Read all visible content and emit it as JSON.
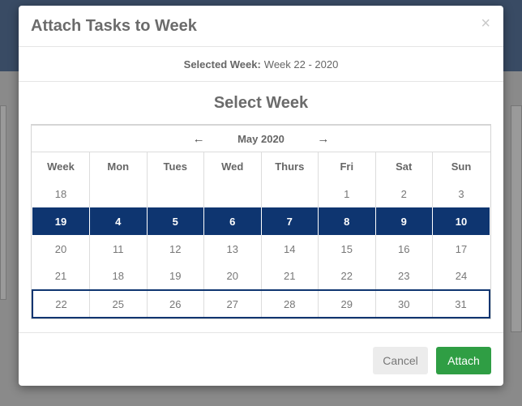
{
  "modal": {
    "title": "Attach Tasks to Week",
    "close_glyph": "×",
    "selected_week_label": "Selected Week:",
    "selected_week_value": "Week 22 - 2020",
    "section_title": "Select Week"
  },
  "calendar": {
    "month": "May 2020",
    "prev_glyph": "←",
    "next_glyph": "→",
    "headers": [
      "Week",
      "Mon",
      "Tues",
      "Wed",
      "Thurs",
      "Fri",
      "Sat",
      "Sun"
    ],
    "rows": [
      {
        "week": "18",
        "days": [
          "",
          "",
          "",
          "",
          "1",
          "2",
          "3"
        ],
        "state": "normal"
      },
      {
        "week": "19",
        "days": [
          "4",
          "5",
          "6",
          "7",
          "8",
          "9",
          "10"
        ],
        "state": "highlighted"
      },
      {
        "week": "20",
        "days": [
          "11",
          "12",
          "13",
          "14",
          "15",
          "16",
          "17"
        ],
        "state": "normal"
      },
      {
        "week": "21",
        "days": [
          "18",
          "19",
          "20",
          "21",
          "22",
          "23",
          "24"
        ],
        "state": "normal"
      },
      {
        "week": "22",
        "days": [
          "25",
          "26",
          "27",
          "28",
          "29",
          "30",
          "31"
        ],
        "state": "selected"
      }
    ]
  },
  "footer": {
    "cancel_label": "Cancel",
    "attach_label": "Attach"
  },
  "colors": {
    "highlight": "#0e3570",
    "attach_button": "#2f9e44"
  }
}
